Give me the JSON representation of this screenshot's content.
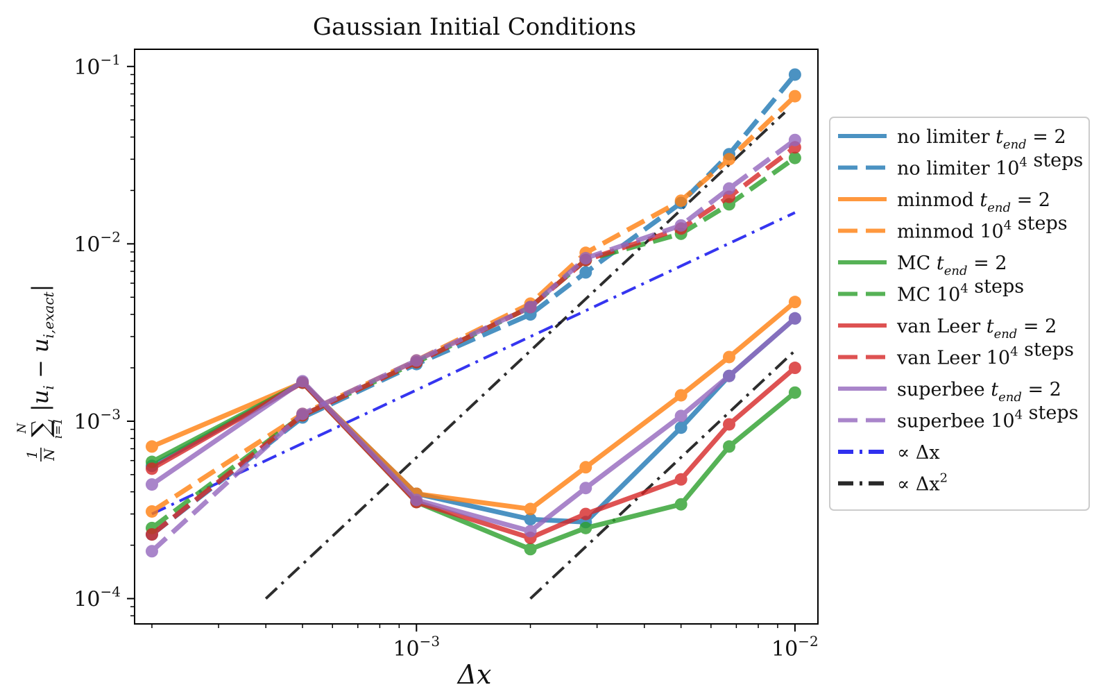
{
  "chart_data": {
    "type": "line",
    "title": "Gaussian Initial Conditions",
    "xlabel": "Δx",
    "ylabel": "1/N Σ_{i=1}^{N} |u_i − u_{i,exact}|",
    "x_scale": "log",
    "y_scale": "log",
    "xlim": [
      0.00018,
      0.0115
    ],
    "ylim": [
      7.2e-05,
      0.125
    ],
    "x_ticks": [
      {
        "value": 0.001,
        "base": "10",
        "exp": "−3"
      },
      {
        "value": 0.01,
        "base": "10",
        "exp": "−2"
      }
    ],
    "y_ticks": [
      {
        "value": 0.0001,
        "base": "10",
        "exp": "−4"
      },
      {
        "value": 0.001,
        "base": "10",
        "exp": "−3"
      },
      {
        "value": 0.01,
        "base": "10",
        "exp": "−2"
      },
      {
        "value": 0.1,
        "base": "10",
        "exp": "−1"
      }
    ],
    "legend_position": "outside right",
    "x": [
      0.0002,
      0.0005,
      0.001,
      0.002,
      0.0028,
      0.005,
      0.0067,
      0.01
    ],
    "series": [
      {
        "name": "no limiter t_end = 2",
        "color": "#1f77b4",
        "dash": "solid",
        "values": [
          0.00056,
          0.00165,
          0.00039,
          0.00028,
          0.00027,
          0.00092,
          0.0018,
          0.0038
        ]
      },
      {
        "name": "no limiter 10^4 steps",
        "color": "#1f77b4",
        "dash": "dashed",
        "values": [
          0.00023,
          0.00105,
          0.0021,
          0.004,
          0.0069,
          0.017,
          0.032,
          0.09
        ]
      },
      {
        "name": "minmod t_end = 2",
        "color": "#ff7f0e",
        "dash": "solid",
        "values": [
          0.00072,
          0.00165,
          0.00039,
          0.00032,
          0.00055,
          0.0014,
          0.0023,
          0.0047
        ]
      },
      {
        "name": "minmod 10^4 steps",
        "color": "#ff7f0e",
        "dash": "dashed",
        "values": [
          0.00031,
          0.0011,
          0.0022,
          0.0046,
          0.0089,
          0.0175,
          0.03,
          0.068
        ]
      },
      {
        "name": "MC t_end = 2",
        "color": "#2ca02c",
        "dash": "solid",
        "values": [
          0.00059,
          0.00165,
          0.00035,
          0.00019,
          0.00025,
          0.00034,
          0.00072,
          0.00145
        ]
      },
      {
        "name": "MC 10^4 steps",
        "color": "#2ca02c",
        "dash": "dashed",
        "values": [
          0.00025,
          0.00108,
          0.00215,
          0.0044,
          0.0081,
          0.0114,
          0.0167,
          0.0305
        ]
      },
      {
        "name": "van Leer t_end = 2",
        "color": "#d62728",
        "dash": "solid",
        "values": [
          0.00054,
          0.00165,
          0.00035,
          0.00022,
          0.0003,
          0.00047,
          0.00096,
          0.002
        ]
      },
      {
        "name": "van Leer 10^4 steps",
        "color": "#d62728",
        "dash": "dashed",
        "values": [
          0.00023,
          0.00108,
          0.00215,
          0.0044,
          0.0081,
          0.0122,
          0.0184,
          0.035
        ]
      },
      {
        "name": "superbee t_end = 2",
        "color": "#9467bd",
        "dash": "solid",
        "values": [
          0.00044,
          0.00168,
          0.00036,
          0.00024,
          0.00042,
          0.00107,
          0.0018,
          0.0038
        ]
      },
      {
        "name": "superbee 10^4 steps",
        "color": "#9467bd",
        "dash": "dashed",
        "values": [
          0.000185,
          0.0011,
          0.0022,
          0.0044,
          0.0083,
          0.0127,
          0.0205,
          0.0385
        ]
      }
    ],
    "reference_lines": [
      {
        "name": "∝ Δx",
        "color": "#1a1aee",
        "dash": "dashdot",
        "x": [
          0.0002,
          0.01
        ],
        "y": [
          0.0003,
          0.015
        ]
      },
      {
        "name": "∝ Δx²",
        "color": "#111111",
        "dash": "dashdot",
        "x": [
          0.0004,
          0.0094
        ],
        "y": [
          0.0001,
          0.055
        ]
      },
      {
        "name": "∝ Δx²",
        "color": "#111111",
        "dash": "dashdot",
        "x": [
          0.002,
          0.01
        ],
        "y": [
          0.0001,
          0.0025
        ]
      }
    ],
    "legend": [
      {
        "text": "no limiter",
        "math": "t",
        "sub": "end",
        "tail": " = 2",
        "sup": "",
        "color": "#1f77b4",
        "dash": "solid"
      },
      {
        "text": "no limiter 10",
        "math": "",
        "sub": "",
        "tail": " steps",
        "sup": "4",
        "color": "#1f77b4",
        "dash": "dashed"
      },
      {
        "text": "minmod",
        "math": "t",
        "sub": "end",
        "tail": " = 2",
        "sup": "",
        "color": "#ff7f0e",
        "dash": "solid"
      },
      {
        "text": "minmod 10",
        "math": "",
        "sub": "",
        "tail": " steps",
        "sup": "4",
        "color": "#ff7f0e",
        "dash": "dashed"
      },
      {
        "text": "MC",
        "math": "t",
        "sub": "end",
        "tail": " = 2",
        "sup": "",
        "color": "#2ca02c",
        "dash": "solid"
      },
      {
        "text": "MC 10",
        "math": "",
        "sub": "",
        "tail": " steps",
        "sup": "4",
        "color": "#2ca02c",
        "dash": "dashed"
      },
      {
        "text": "van Leer",
        "math": "t",
        "sub": "end",
        "tail": " = 2",
        "sup": "",
        "color": "#d62728",
        "dash": "solid"
      },
      {
        "text": "van Leer 10",
        "math": "",
        "sub": "",
        "tail": " steps",
        "sup": "4",
        "color": "#d62728",
        "dash": "dashed"
      },
      {
        "text": "superbee",
        "math": "t",
        "sub": "end",
        "tail": " = 2",
        "sup": "",
        "color": "#9467bd",
        "dash": "solid"
      },
      {
        "text": "superbee 10",
        "math": "",
        "sub": "",
        "tail": " steps",
        "sup": "4",
        "color": "#9467bd",
        "dash": "dashed"
      },
      {
        "text": "∝ Δx",
        "math": "",
        "sub": "",
        "tail": "",
        "sup": "",
        "color": "#1a1aee",
        "dash": "dashdot"
      },
      {
        "text": "∝ Δx",
        "math": "",
        "sub": "",
        "tail": "",
        "sup": "2",
        "color": "#111111",
        "dash": "dashdot"
      }
    ]
  }
}
